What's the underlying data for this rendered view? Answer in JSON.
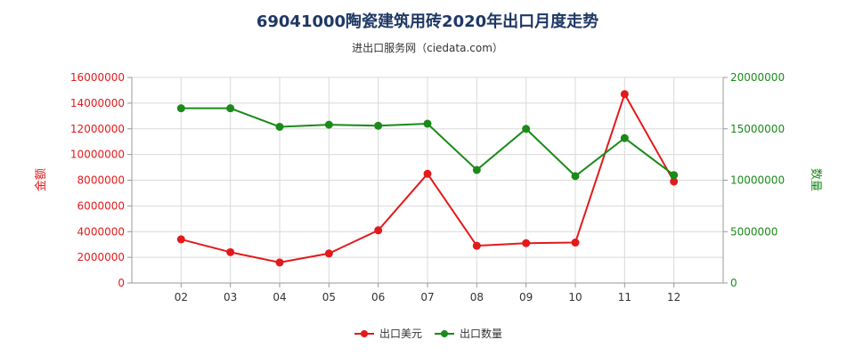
{
  "title": "69041000陶瓷建筑用砖2020年出口月度走势",
  "subtitle": "进出口服务网（ciedata.com）",
  "colors": {
    "amount": "#e31a1c",
    "quantity": "#1a8a1a",
    "axis": "#999999",
    "grid": "#d9d9d9"
  },
  "chart_data": {
    "type": "line",
    "categories": [
      "02",
      "03",
      "04",
      "05",
      "06",
      "07",
      "08",
      "09",
      "10",
      "11",
      "12"
    ],
    "y_left": {
      "label": "金额",
      "min": 0,
      "max": 16000000,
      "ticks": [
        "0",
        "2000000",
        "4000000",
        "6000000",
        "8000000",
        "10000000",
        "12000000",
        "14000000",
        "16000000"
      ]
    },
    "y_right": {
      "label": "数量",
      "min": 0,
      "max": 20000000,
      "ticks": [
        "0",
        "5000000",
        "10000000",
        "15000000",
        "20000000"
      ]
    },
    "grid": true,
    "legend_position": "bottom",
    "series": [
      {
        "name": "出口美元",
        "axis": "left",
        "values": [
          3400000,
          2400000,
          1600000,
          2300000,
          4100000,
          8500000,
          2900000,
          3100000,
          3150000,
          14700000,
          7900000
        ]
      },
      {
        "name": "出口数量",
        "axis": "right",
        "values": [
          17000000,
          17000000,
          15200000,
          15400000,
          15300000,
          15500000,
          11000000,
          15000000,
          10400000,
          14100000,
          10500000
        ]
      }
    ]
  }
}
